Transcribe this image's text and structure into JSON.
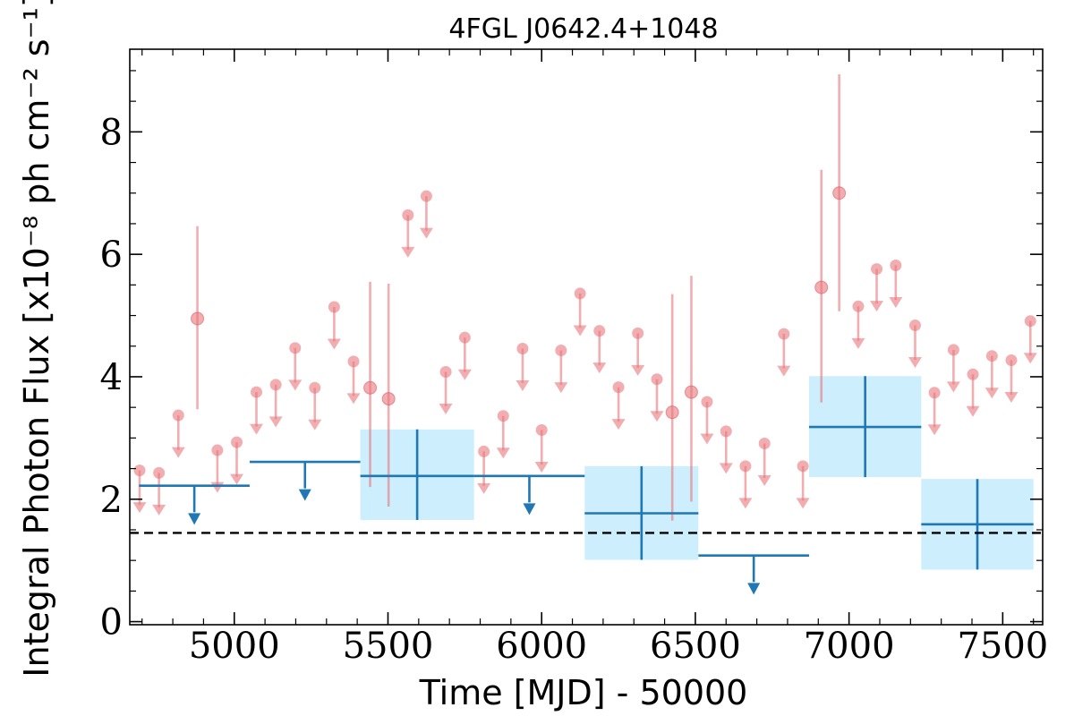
{
  "chart_data": {
    "type": "scatter",
    "title": "4FGL J0642.4+1048",
    "xlabel": "Time [MJD] - 50000",
    "ylabel": "Integral Photon Flux [x10⁻⁸ ph cm⁻² s⁻¹]",
    "xlim": [
      4660,
      7630
    ],
    "ylim": [
      -0.05,
      9.35
    ],
    "xticks": [
      5000,
      5500,
      6000,
      6500,
      7000,
      7500
    ],
    "xtick_labels": [
      "5000",
      "5500",
      "6000",
      "6500",
      "7000",
      "7500"
    ],
    "yticks": [
      0,
      2,
      4,
      6,
      8
    ],
    "ytick_labels": [
      "0",
      "2",
      "4",
      "6",
      "8"
    ],
    "grid": false,
    "reference_line": {
      "y": 1.45,
      "style": "dashed"
    },
    "colors": {
      "short_bins": "#e8777c",
      "long_bins": "#1f77b4",
      "error_box": "#cdeefc",
      "reference": "#000000"
    },
    "series": [
      {
        "kind": "short-bin upper limits",
        "points": [
          {
            "x": 4692,
            "y": 2.47
          },
          {
            "x": 4755,
            "y": 2.43
          },
          {
            "x": 4818,
            "y": 3.37
          },
          {
            "x": 4945,
            "y": 2.8
          },
          {
            "x": 5008,
            "y": 2.93
          },
          {
            "x": 5072,
            "y": 3.75
          },
          {
            "x": 5135,
            "y": 3.87
          },
          {
            "x": 5198,
            "y": 4.47
          },
          {
            "x": 5262,
            "y": 3.82
          },
          {
            "x": 5325,
            "y": 5.14
          },
          {
            "x": 5388,
            "y": 4.25
          },
          {
            "x": 5565,
            "y": 6.64
          },
          {
            "x": 5625,
            "y": 6.95
          },
          {
            "x": 5688,
            "y": 4.08
          },
          {
            "x": 5750,
            "y": 4.64
          },
          {
            "x": 5812,
            "y": 2.78
          },
          {
            "x": 5875,
            "y": 3.36
          },
          {
            "x": 5938,
            "y": 4.46
          },
          {
            "x": 6000,
            "y": 3.13
          },
          {
            "x": 6063,
            "y": 4.43
          },
          {
            "x": 6125,
            "y": 5.36
          },
          {
            "x": 6188,
            "y": 4.75
          },
          {
            "x": 6250,
            "y": 3.83
          },
          {
            "x": 6313,
            "y": 4.71
          },
          {
            "x": 6375,
            "y": 3.96
          },
          {
            "x": 6538,
            "y": 3.59
          },
          {
            "x": 6600,
            "y": 3.11
          },
          {
            "x": 6663,
            "y": 2.54
          },
          {
            "x": 6725,
            "y": 2.91
          },
          {
            "x": 6788,
            "y": 4.7
          },
          {
            "x": 6850,
            "y": 2.54
          },
          {
            "x": 7030,
            "y": 5.15
          },
          {
            "x": 7090,
            "y": 5.76
          },
          {
            "x": 7152,
            "y": 5.82
          },
          {
            "x": 7215,
            "y": 4.84
          },
          {
            "x": 7278,
            "y": 3.74
          },
          {
            "x": 7340,
            "y": 4.44
          },
          {
            "x": 7403,
            "y": 4.04
          },
          {
            "x": 7465,
            "y": 4.34
          },
          {
            "x": 7528,
            "y": 4.27
          },
          {
            "x": 7590,
            "y": 4.91
          }
        ]
      },
      {
        "kind": "short-bin detections",
        "points": [
          {
            "x": 4880,
            "y": 4.95,
            "ylo": 3.47,
            "yhi": 6.46
          },
          {
            "x": 5442,
            "y": 3.82,
            "ylo": 2.2,
            "yhi": 5.55
          },
          {
            "x": 5502,
            "y": 3.64,
            "ylo": 1.88,
            "yhi": 5.52
          },
          {
            "x": 6425,
            "y": 3.42,
            "ylo": 1.65,
            "yhi": 5.35
          },
          {
            "x": 6487,
            "y": 3.75,
            "ylo": 1.96,
            "yhi": 5.65
          },
          {
            "x": 6910,
            "y": 5.46,
            "ylo": 3.58,
            "yhi": 7.38
          },
          {
            "x": 6968,
            "y": 7.0,
            "ylo": 5.07,
            "yhi": 8.94
          }
        ]
      },
      {
        "kind": "long-bin upper limits",
        "points": [
          {
            "x0": 4690,
            "x1": 5050,
            "y": 2.22
          },
          {
            "x0": 5050,
            "x1": 5410,
            "y": 2.61
          },
          {
            "x0": 5780,
            "x1": 6140,
            "y": 2.38
          },
          {
            "x0": 6510,
            "x1": 6870,
            "y": 1.08
          }
        ]
      },
      {
        "kind": "long-bin detections",
        "points": [
          {
            "x0": 5410,
            "x1": 5780,
            "y": 2.38,
            "ylo": 1.66,
            "yhi": 3.14
          },
          {
            "x0": 6140,
            "x1": 6510,
            "y": 1.77,
            "ylo": 1.01,
            "yhi": 2.54
          },
          {
            "x0": 6870,
            "x1": 7235,
            "y": 3.18,
            "ylo": 2.36,
            "yhi": 4.01
          },
          {
            "x0": 7235,
            "x1": 7600,
            "y": 1.59,
            "ylo": 0.85,
            "yhi": 2.33
          }
        ]
      }
    ]
  }
}
